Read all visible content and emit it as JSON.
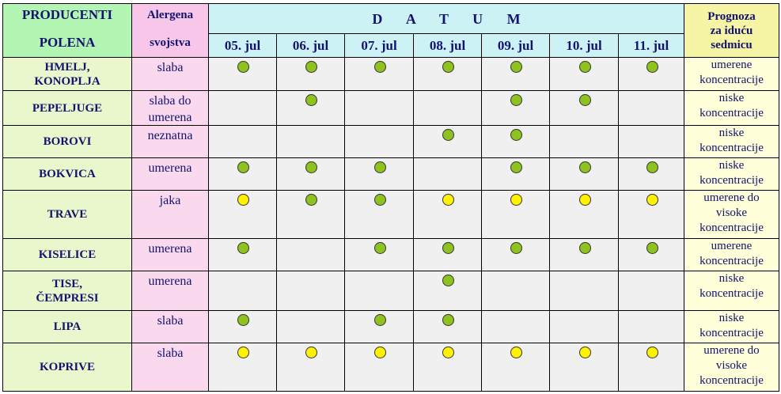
{
  "header": {
    "producers": [
      "PRODUCENTI",
      "POLENA"
    ],
    "allergen": [
      "Alergena",
      "svojstva"
    ],
    "datum": "D A T U M",
    "forecast": [
      "Prognoza",
      "za iduću",
      "sedmicu"
    ],
    "dates": [
      "05. jul",
      "06. jul",
      "07. jul",
      "08. jul",
      "09. jul",
      "10. jul",
      "11. jul"
    ]
  },
  "legend_colors": {
    "green": "#8dc21f",
    "yellow": "#fff200"
  },
  "rows": [
    {
      "name": [
        "HMELJ,",
        "KONOPLJA"
      ],
      "allergen": [
        "slaba"
      ],
      "levels": [
        "green",
        "green",
        "green",
        "green",
        "green",
        "green",
        "green"
      ],
      "forecast": [
        "umerene",
        "koncentracije"
      ]
    },
    {
      "name": [
        "PEPELJUGE"
      ],
      "allergen": [
        "slaba do",
        "umerena"
      ],
      "levels": [
        "",
        "green",
        "",
        "",
        "green",
        "green",
        ""
      ],
      "forecast": [
        "niske",
        "koncentracije"
      ]
    },
    {
      "name": [
        "BOROVI"
      ],
      "allergen": [
        "neznatna"
      ],
      "levels": [
        "",
        "",
        "",
        "green",
        "green",
        "",
        ""
      ],
      "forecast": [
        "niske",
        "koncentracije"
      ]
    },
    {
      "name": [
        "BOKVICA"
      ],
      "allergen": [
        "umerena"
      ],
      "levels": [
        "green",
        "green",
        "green",
        "",
        "green",
        "green",
        "green"
      ],
      "forecast": [
        "niske",
        "koncentracije"
      ]
    },
    {
      "name": [
        "TRAVE"
      ],
      "allergen": [
        "jaka"
      ],
      "levels": [
        "yellow",
        "green",
        "green",
        "yellow",
        "yellow",
        "yellow",
        "yellow"
      ],
      "forecast": [
        "umerene do",
        "visoke",
        "koncentracije"
      ]
    },
    {
      "name": [
        "KISELICE"
      ],
      "allergen": [
        "umerena"
      ],
      "levels": [
        "green",
        "",
        "green",
        "green",
        "green",
        "green",
        "green"
      ],
      "forecast": [
        "umerene",
        "koncentracije"
      ]
    },
    {
      "name": [
        "TISE,",
        "ČEMPRESI"
      ],
      "allergen": [
        "umerena"
      ],
      "levels": [
        "",
        "",
        "",
        "green",
        "",
        "",
        ""
      ],
      "forecast": [
        "niske",
        "koncentracije"
      ]
    },
    {
      "name": [
        "LIPA"
      ],
      "allergen": [
        "slaba"
      ],
      "levels": [
        "green",
        "",
        "green",
        "green",
        "",
        "",
        ""
      ],
      "forecast": [
        "niske",
        "koncentracije"
      ]
    },
    {
      "name": [
        "KOPRIVE"
      ],
      "allergen": [
        "slaba"
      ],
      "levels": [
        "yellow",
        "yellow",
        "yellow",
        "yellow",
        "yellow",
        "yellow",
        "yellow"
      ],
      "forecast": [
        "umerene do",
        "visoke",
        "koncentracije"
      ]
    }
  ]
}
